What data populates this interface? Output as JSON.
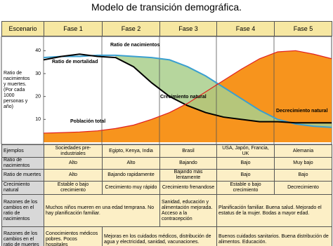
{
  "title": "Modelo de transición demográfica.",
  "table": {
    "header": [
      "Escenario",
      "Fase 1",
      "Fase 2",
      "Fase 3",
      "Fase 4",
      "Fase 5"
    ],
    "rows": [
      [
        "Ejemplos",
        "Sociedades pre-industriales",
        "Egipto, Kenya, India",
        "Brasil",
        "USA, Japón, Francia, UK",
        "Alemania"
      ],
      [
        "Ratio de nacimientos",
        "Alto",
        "Alto",
        "Bajando",
        "Bajo",
        "Muy bajo"
      ],
      [
        "Ratio de muertes",
        "Alto",
        "Bajando rapidamente",
        "Bajando más lentamente",
        "Bajo",
        "Bajo"
      ],
      [
        "Crecimiento natural",
        "Estable o bajo crecimiento",
        "Crecimiento muy rápido",
        "Crecimiento frenandose",
        "Estable o bajo crecimiento",
        "Decrecimiento"
      ],
      [
        "Razones de los cambios en el ratio de nacimientos",
        "Muchos niños mueren en una edad temprana. No hay planificación familiar.",
        "Sanidad, educación y alimentación mejorada. Acceso a la contracepción",
        "Planificación familiar. Buena salud. Mejorado el estatus de la mujer. Bodas a mayor edad."
      ],
      [
        "Razones de los cambios en el ratio de muertes",
        "Conocimientos médicos pobres. Pocos hospitales",
        "Mejoras en los cuidados médicos, distribución de agua y electricidad, sanidad, vacunaciones.",
        "Buenos cuidados sanitarios. Buena distribución de alimentos. Educación."
      ]
    ]
  },
  "chart_data": {
    "type": "line",
    "y_label": "Ratio de nacimientos y muertes. (Por cada 1000 personas y año)",
    "ylim": [
      0,
      45
    ],
    "yticks": [
      10,
      20,
      30,
      40
    ],
    "series": [
      {
        "name": "Ratio de nacimientos",
        "color": "#3a9fd0",
        "values": [
          37,
          37.5,
          37.5,
          38,
          38,
          37.5,
          37,
          36,
          33,
          29,
          24,
          19,
          14,
          10,
          8,
          7,
          6.5
        ]
      },
      {
        "name": "Ratio de mortalidad",
        "color": "#000000",
        "values": [
          36,
          37.5,
          38.5,
          37.5,
          37,
          33,
          26,
          20,
          16,
          13,
          11,
          10,
          9,
          9,
          8.5,
          8.5,
          8.5
        ]
      },
      {
        "name": "Población total",
        "color": "#e02020",
        "values": [
          4,
          4.2,
          4.5,
          5,
          6,
          7.5,
          10,
          13,
          17,
          22,
          27,
          32,
          36.5,
          39.5,
          40,
          38.5,
          36.5
        ]
      }
    ],
    "annotations": [
      "Crecimiento natural",
      "Decrecimiento natural"
    ]
  }
}
